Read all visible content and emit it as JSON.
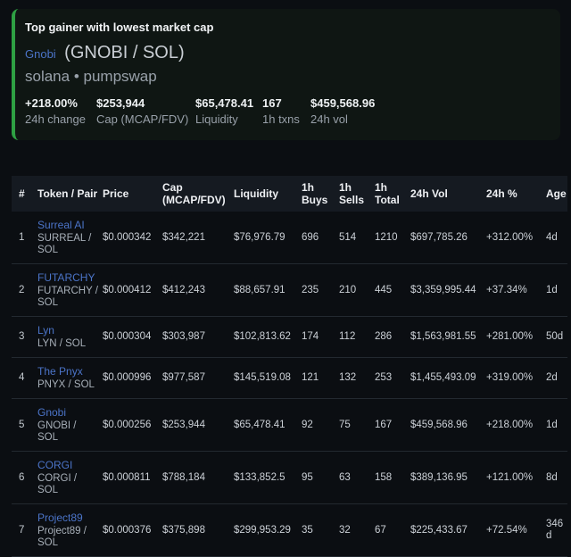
{
  "colors": {
    "accent_green": "#2ea043",
    "link_blue": "#4b74c8",
    "page_bg": "#0b0e12",
    "card_bg": "#0f1613",
    "header_bg": "#151a21"
  },
  "card": {
    "title": "Top gainer with lowest market cap",
    "token_name": "Gnobi",
    "token_pair": "(GNOBI / SOL)",
    "venue": "solana • pumpswap",
    "stats": [
      {
        "value": "+218.00%",
        "label": "24h change"
      },
      {
        "value": "$253,944",
        "label": "Cap (MCAP/FDV)"
      },
      {
        "value": "$65,478.41",
        "label": "Liquidity"
      },
      {
        "value": "167",
        "label": "1h txns"
      },
      {
        "value": "$459,568.96",
        "label": "24h vol"
      }
    ]
  },
  "table": {
    "headers": [
      "#",
      "Token / Pair",
      "Price",
      "Cap (MCAP/FDV)",
      "Liquidity",
      "1h Buys",
      "1h Sells",
      "1h Total",
      "24h Vol",
      "24h %",
      "Age"
    ],
    "rows": [
      {
        "rank": "1",
        "name": "Surreal AI",
        "pair": "SURREAL / SOL",
        "price": "$0.000342",
        "cap": "$342,221",
        "liquidity": "$76,976.79",
        "buys": "696",
        "sells": "514",
        "total": "1210",
        "vol": "$697,785.26",
        "pct": "+312.00%",
        "age": "4d"
      },
      {
        "rank": "2",
        "name": "FUTARCHY",
        "pair": "FUTARCHY / SOL",
        "price": "$0.000412",
        "cap": "$412,243",
        "liquidity": "$88,657.91",
        "buys": "235",
        "sells": "210",
        "total": "445",
        "vol": "$3,359,995.44",
        "pct": "+37.34%",
        "age": "1d"
      },
      {
        "rank": "3",
        "name": "Lyn",
        "pair": "LYN / SOL",
        "price": "$0.000304",
        "cap": "$303,987",
        "liquidity": "$102,813.62",
        "buys": "174",
        "sells": "112",
        "total": "286",
        "vol": "$1,563,981.55",
        "pct": "+281.00%",
        "age": "50d"
      },
      {
        "rank": "4",
        "name": "The Pnyx",
        "pair": "PNYX / SOL",
        "price": "$0.000996",
        "cap": "$977,587",
        "liquidity": "$145,519.08",
        "buys": "121",
        "sells": "132",
        "total": "253",
        "vol": "$1,455,493.09",
        "pct": "+319.00%",
        "age": "2d"
      },
      {
        "rank": "5",
        "name": "Gnobi",
        "pair": "GNOBI / SOL",
        "price": "$0.000256",
        "cap": "$253,944",
        "liquidity": "$65,478.41",
        "buys": "92",
        "sells": "75",
        "total": "167",
        "vol": "$459,568.96",
        "pct": "+218.00%",
        "age": "1d"
      },
      {
        "rank": "6",
        "name": "CORGI",
        "pair": "CORGI / SOL",
        "price": "$0.000811",
        "cap": "$788,184",
        "liquidity": "$133,852.5",
        "buys": "95",
        "sells": "63",
        "total": "158",
        "vol": "$389,136.95",
        "pct": "+121.00%",
        "age": "8d"
      },
      {
        "rank": "7",
        "name": "Project89",
        "pair": "Project89 / SOL",
        "price": "$0.000376",
        "cap": "$375,898",
        "liquidity": "$299,953.29",
        "buys": "35",
        "sells": "32",
        "total": "67",
        "vol": "$225,433.67",
        "pct": "+72.54%",
        "age": "346d"
      }
    ]
  }
}
